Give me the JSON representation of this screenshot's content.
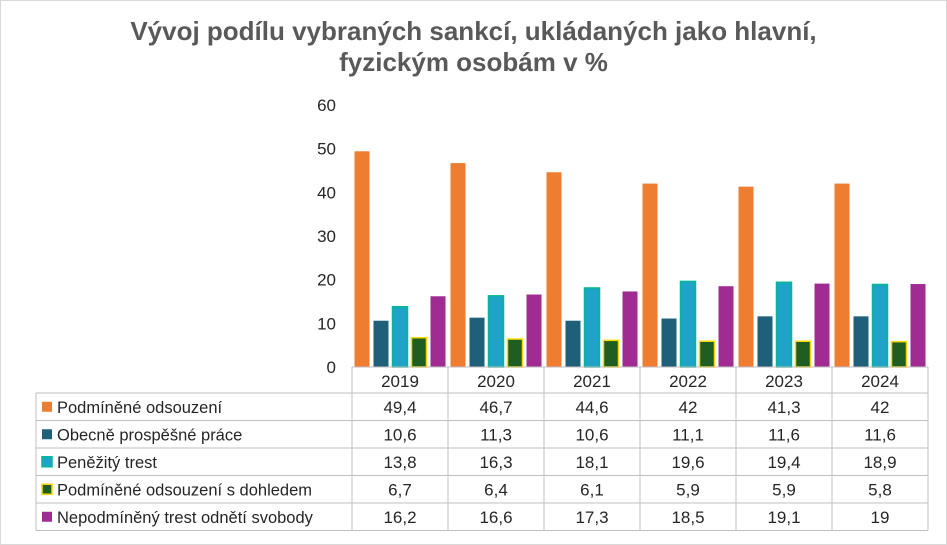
{
  "chart_data": {
    "type": "bar",
    "title_line1": "Vývoj podílu vybraných sankcí, ukládaných jako hlavní,",
    "title_line2": "fyzickým osobám v %",
    "categories": [
      "2019",
      "2020",
      "2021",
      "2022",
      "2023",
      "2024"
    ],
    "ylim": [
      0,
      60
    ],
    "yticks": [
      "0",
      "10",
      "20",
      "30",
      "40",
      "50",
      "60"
    ],
    "grid": false,
    "legend": "data-table",
    "series": [
      {
        "name": "Podmíněné odsouzení",
        "color": "#ED7D31",
        "border": "#ED7D31",
        "values": [
          49.4,
          46.7,
          44.6,
          42,
          41.3,
          42
        ],
        "labels": [
          "49,4",
          "46,7",
          "44,6",
          "42",
          "41,3",
          "42"
        ]
      },
      {
        "name": "Obecně prospěšné práce",
        "color": "#1F5F7A",
        "border": "#1F5F7A",
        "values": [
          10.6,
          11.3,
          10.6,
          11.1,
          11.6,
          11.6
        ],
        "labels": [
          "10,6",
          "11,3",
          "10,6",
          "11,1",
          "11,6",
          "11,6"
        ]
      },
      {
        "name": "Peněžitý trest",
        "color": "#1FA3C9",
        "border": "#00B894",
        "values": [
          13.8,
          16.3,
          18.1,
          19.6,
          19.4,
          18.9
        ],
        "labels": [
          "13,8",
          "16,3",
          "18,1",
          "19,6",
          "19,4",
          "18,9"
        ]
      },
      {
        "name": "Podmíněné odsouzení s dohledem",
        "color": "#1E5E20",
        "border": "#FFD700",
        "values": [
          6.7,
          6.4,
          6.1,
          5.9,
          5.9,
          5.8
        ],
        "labels": [
          "6,7",
          "6,4",
          "6,1",
          "5,9",
          "5,9",
          "5,8"
        ]
      },
      {
        "name": "Nepodmíněný trest odnětí svobody",
        "color": "#A02B93",
        "border": "#A02B93",
        "values": [
          16.2,
          16.6,
          17.3,
          18.5,
          19.1,
          19
        ],
        "labels": [
          "16,2",
          "16,6",
          "17,3",
          "18,5",
          "19,1",
          "19"
        ]
      }
    ]
  }
}
